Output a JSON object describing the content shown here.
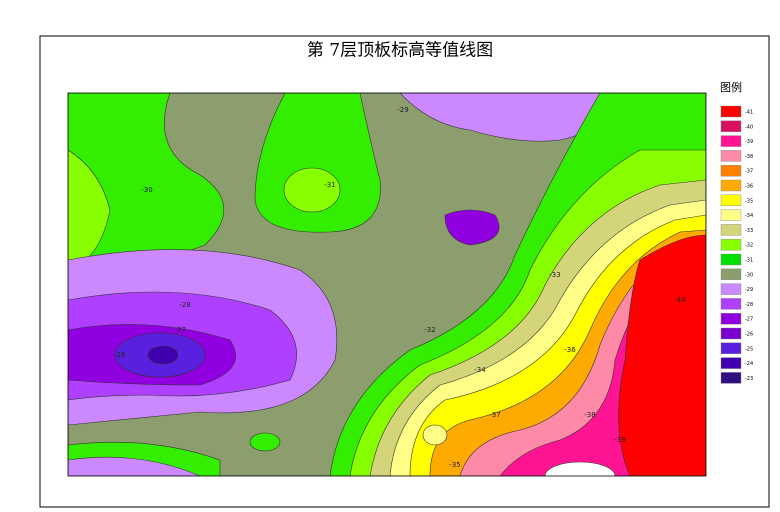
{
  "title": "第 7层顶板标高等值线图",
  "legend": {
    "title": "图例",
    "items": [
      {
        "label": "-41",
        "color": "#ff0000"
      },
      {
        "label": "-40",
        "color": "#d81060"
      },
      {
        "label": "-39",
        "color": "#ff1493"
      },
      {
        "label": "-38",
        "color": "#ff8aa8"
      },
      {
        "label": "-37",
        "color": "#ff8000"
      },
      {
        "label": "-36",
        "color": "#ffaa00"
      },
      {
        "label": "-35",
        "color": "#ffff00"
      },
      {
        "label": "-34",
        "color": "#ffff88"
      },
      {
        "label": "-33",
        "color": "#d4d47a"
      },
      {
        "label": "-32",
        "color": "#88ff00"
      },
      {
        "label": "-31",
        "color": "#00e000"
      },
      {
        "label": "-30",
        "color": "#8c9e6e"
      },
      {
        "label": "-29",
        "color": "#cc88ff"
      },
      {
        "label": "-28",
        "color": "#b040ff"
      },
      {
        "label": "-27",
        "color": "#9000e0"
      },
      {
        "label": "-26",
        "color": "#7a00d0"
      },
      {
        "label": "-25",
        "color": "#5a20e0"
      },
      {
        "label": "-24",
        "color": "#4000b0"
      },
      {
        "label": "-23",
        "color": "#301080"
      }
    ]
  },
  "contour_labels": [
    "-29",
    "-30",
    "-31",
    "-28",
    "-27",
    "-26",
    "-32",
    "-33",
    "-34",
    "-35",
    "-36",
    "-37",
    "-38",
    "-39",
    "-40"
  ]
}
